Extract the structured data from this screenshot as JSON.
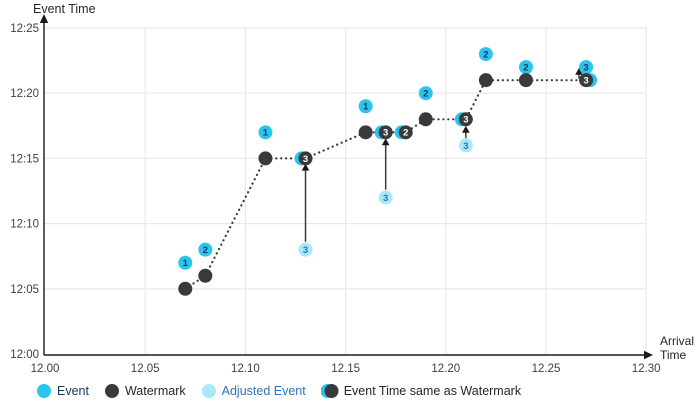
{
  "chart_data": {
    "type": "scatter",
    "title": "",
    "xlabel": "Arrival Time",
    "ylabel": "Event Time",
    "grid": true,
    "legend_position": "bottom",
    "x_axis": {
      "tick_labels": [
        "12.00",
        "12.05",
        "12.10",
        "12.15",
        "12.20",
        "12.25",
        "12.30"
      ],
      "tick_minutes": [
        0,
        5,
        10,
        15,
        20,
        25,
        30
      ],
      "range_minutes": [
        0,
        30
      ]
    },
    "y_axis": {
      "tick_labels": [
        "12:00",
        "12:05",
        "12:10",
        "12:15",
        "12:20",
        "12:25"
      ],
      "tick_minutes": [
        0,
        5,
        10,
        15,
        20,
        25
      ],
      "range_minutes": [
        0,
        25
      ]
    },
    "events": [
      {
        "id": "1",
        "arrival": "12.07",
        "event_time": "12:07",
        "arrival_min": 7,
        "event_time_min": 7
      },
      {
        "id": "2",
        "arrival": "12.08",
        "event_time": "12:08",
        "arrival_min": 8,
        "event_time_min": 8
      },
      {
        "id": "1",
        "arrival": "12.11",
        "event_time": "12:17",
        "arrival_min": 11,
        "event_time_min": 17
      },
      {
        "id": "1",
        "arrival": "12.16",
        "event_time": "12:19",
        "arrival_min": 16,
        "event_time_min": 19
      },
      {
        "id": "2",
        "arrival": "12.19",
        "event_time": "12:20",
        "arrival_min": 19,
        "event_time_min": 20
      },
      {
        "id": "2",
        "arrival": "12.22",
        "event_time": "12:23",
        "arrival_min": 22,
        "event_time_min": 23
      },
      {
        "id": "2",
        "arrival": "12.24",
        "event_time": "12:22",
        "arrival_min": 24,
        "event_time_min": 22
      },
      {
        "id": "3",
        "arrival": "12.27",
        "event_time": "12:22",
        "arrival_min": 27,
        "event_time_min": 22
      }
    ],
    "adjusted_events": [
      {
        "id": "3",
        "arrival": "12.13",
        "original_time": "12:08",
        "adjusted_time": "12:15",
        "arrival_min": 13,
        "original_time_min": 8,
        "adjusted_time_min": 15
      },
      {
        "id": "3",
        "arrival": "12.17",
        "original_time": "12:12",
        "adjusted_time": "12:17",
        "arrival_min": 17,
        "original_time_min": 12,
        "adjusted_time_min": 17
      },
      {
        "id": "3",
        "arrival": "12.21",
        "original_time": "12:16",
        "adjusted_time": "12:18",
        "arrival_min": 21,
        "original_time_min": 16,
        "adjusted_time_min": 18
      }
    ],
    "same_as_watermark": [
      {
        "id": "3",
        "arrival": "12.13",
        "time": "12:15",
        "arrival_min": 13,
        "time_min": 15,
        "crescent": "left"
      },
      {
        "id": "3",
        "arrival": "12.17",
        "time": "12:17",
        "arrival_min": 17,
        "time_min": 17,
        "crescent": "left"
      },
      {
        "id": "2",
        "arrival": "12.18",
        "time": "12:17",
        "arrival_min": 18,
        "time_min": 17,
        "crescent": "left"
      },
      {
        "id": "3",
        "arrival": "12.21",
        "time": "12:18",
        "arrival_min": 21,
        "time_min": 18,
        "crescent": "left"
      },
      {
        "id": "3",
        "arrival": "12.27",
        "time": "12:21",
        "arrival_min": 27,
        "time_min": 21,
        "crescent": "right"
      }
    ],
    "watermark_line": [
      [
        7,
        5
      ],
      [
        8,
        6
      ],
      [
        11,
        15
      ],
      [
        13,
        15
      ],
      [
        16,
        17
      ],
      [
        17,
        17
      ],
      [
        18,
        17
      ],
      [
        19,
        18
      ],
      [
        21,
        18
      ],
      [
        22,
        21
      ],
      [
        24,
        21
      ],
      [
        27,
        21
      ]
    ],
    "watermark_dots": [
      [
        7,
        5
      ],
      [
        8,
        6
      ],
      [
        11,
        15
      ],
      [
        16,
        17
      ],
      [
        19,
        18
      ],
      [
        22,
        21
      ],
      [
        24,
        21
      ]
    ],
    "arrows": [
      {
        "x_min": 13,
        "tail_min": 8.6,
        "tip_min": 14.6
      },
      {
        "x_min": 17,
        "tail_min": 12.6,
        "tip_min": 16.55
      },
      {
        "x_min": 21,
        "tail_min": 16.55,
        "tip_min": 17.5
      },
      {
        "x_min": 26.65,
        "tail_min": 21.1,
        "tip_min": 21.95
      }
    ],
    "legend": [
      {
        "label": "Event",
        "type": "event",
        "text_color": "#17375E"
      },
      {
        "label": "Watermark",
        "type": "watermark",
        "text_color": "#262626"
      },
      {
        "label": "Adjusted Event",
        "type": "adjusted",
        "text_color": "#2E74B5"
      },
      {
        "label": "Event Time same as Watermark",
        "type": "same",
        "text_color": "#262626"
      }
    ],
    "colors": {
      "event": "#2BC4EA",
      "watermark": "#3A3A3C",
      "adjusted": "#A9E8F9",
      "number_on_event": "#17375E",
      "number_on_adjusted": "#2E74B5",
      "number_on_dark": "#FFFFFF",
      "grid": "#E9E9E9",
      "axis": "#1A1A1A",
      "tick_text": "#404040",
      "title_text": "#262626"
    }
  }
}
